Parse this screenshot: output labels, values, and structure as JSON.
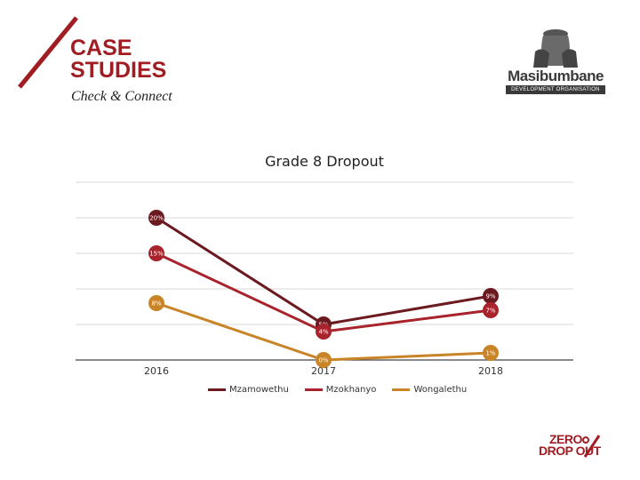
{
  "header": {
    "title_line1": "CASE",
    "title_line2": "STUDIES",
    "subtitle": "Check & Connect"
  },
  "logo": {
    "name": "Masibumbane",
    "tagline": "DEVELOPMENT ORGANISATION",
    "icon": "hands-holding-pot-icon"
  },
  "footer_logo": {
    "line1": "ZERO",
    "line2": "DROP OUT",
    "icon": "percent-icon"
  },
  "colors": {
    "accent": "#a01d23",
    "mzamowethu": "#6b1a1f",
    "mzokhanyo": "#a8232b",
    "wongalethu": "#c98427"
  },
  "chart_data": {
    "type": "line",
    "title": "Grade 8 Dropout",
    "categories": [
      "2016",
      "2017",
      "2018"
    ],
    "ylim": [
      0,
      25
    ],
    "grid": true,
    "legend_position": "bottom",
    "series": [
      {
        "name": "Mzamowethu",
        "values": [
          20,
          5,
          9
        ],
        "labels": [
          "20%",
          "5%",
          "9%"
        ]
      },
      {
        "name": "Mzokhanyo",
        "values": [
          15,
          4,
          7
        ],
        "labels": [
          "15%",
          "4%",
          "7%"
        ]
      },
      {
        "name": "Wongalethu",
        "values": [
          8,
          0,
          1
        ],
        "labels": [
          "8%",
          "0%",
          "1%"
        ]
      }
    ]
  }
}
